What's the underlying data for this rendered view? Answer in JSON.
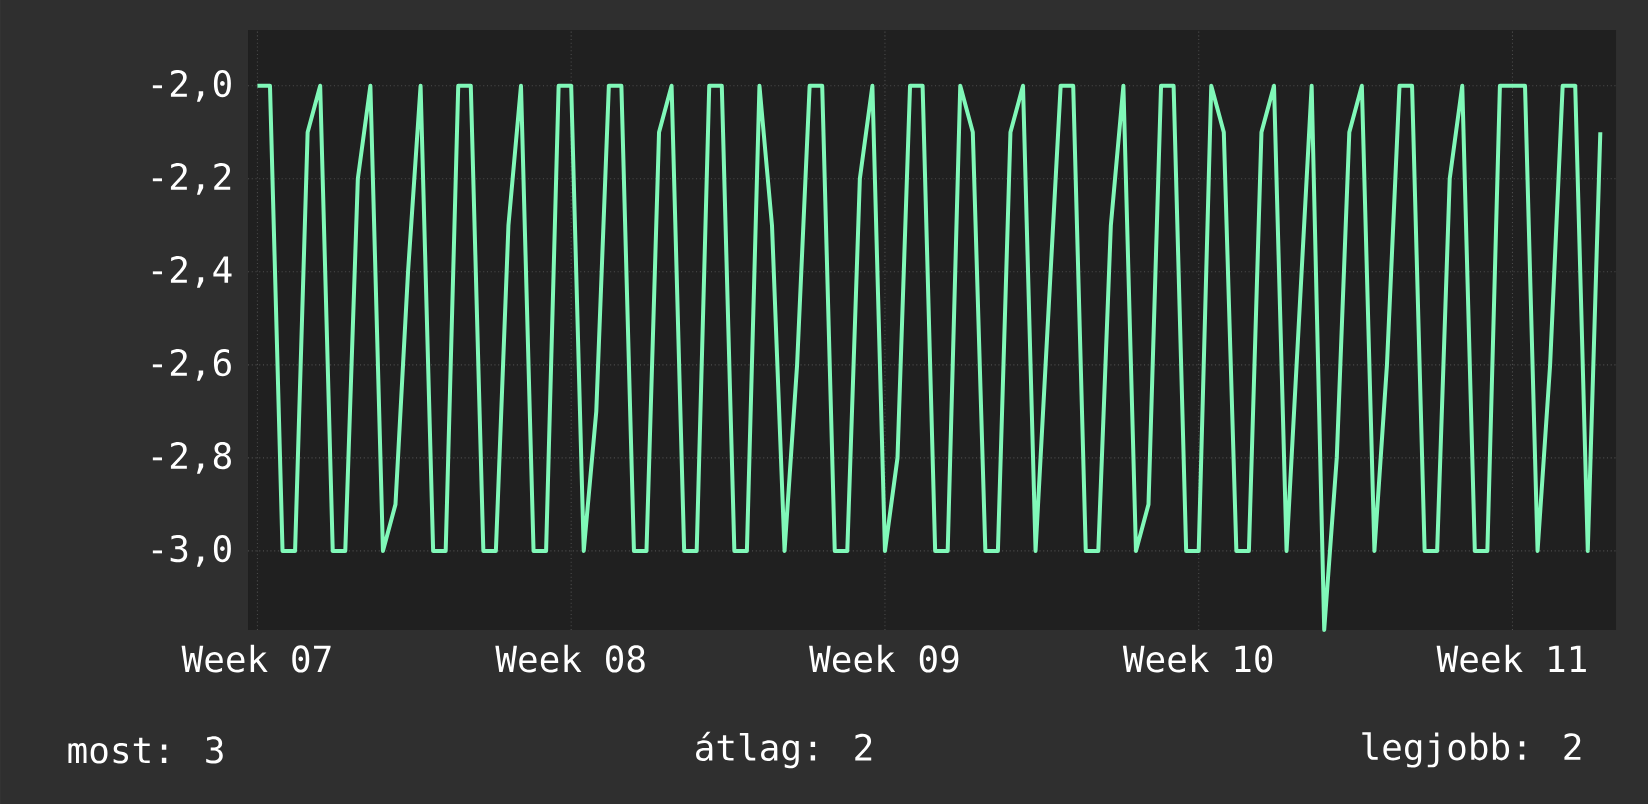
{
  "chart_data": {
    "type": "line",
    "ylim": [
      -3.17,
      -1.88
    ],
    "yticks": [
      {
        "value": -3.0,
        "label": "-3,0"
      },
      {
        "value": -2.8,
        "label": "-2,8"
      },
      {
        "value": -2.6,
        "label": "-2,6"
      },
      {
        "value": -2.4,
        "label": "-2,4"
      },
      {
        "value": -2.2,
        "label": "-2,2"
      },
      {
        "value": -2.0,
        "label": "-2,0"
      }
    ],
    "grid": true,
    "marker": "none",
    "line_style": "solid",
    "categories": [
      "Week 07",
      null,
      null,
      null,
      null,
      null,
      null,
      null,
      null,
      null,
      null,
      null,
      null,
      null,
      null,
      null,
      null,
      null,
      null,
      null,
      null,
      null,
      null,
      null,
      null,
      "Week 08",
      null,
      null,
      null,
      null,
      null,
      null,
      null,
      null,
      null,
      null,
      null,
      null,
      null,
      null,
      null,
      null,
      null,
      null,
      null,
      null,
      null,
      null,
      null,
      null,
      "Week 09",
      null,
      null,
      null,
      null,
      null,
      null,
      null,
      null,
      null,
      null,
      null,
      null,
      null,
      null,
      null,
      null,
      null,
      null,
      null,
      null,
      null,
      null,
      null,
      null,
      "Week 10",
      null,
      null,
      null,
      null,
      null,
      null,
      null,
      null,
      null,
      null,
      null,
      null,
      null,
      null,
      null,
      null,
      null,
      null,
      null,
      null,
      null,
      null,
      null,
      null,
      "Week 11",
      null,
      null,
      null,
      null,
      null,
      null,
      null
    ],
    "series": [
      {
        "color": "#80f8b8",
        "values": [
          -2.0,
          -2.0,
          -3.0,
          -3.0,
          -2.1,
          -2.0,
          -3.0,
          -3.0,
          -2.2,
          -2.0,
          -3.0,
          -2.9,
          -2.4,
          -2.0,
          -3.0,
          -3.0,
          -2.0,
          -2.0,
          -3.0,
          -3.0,
          -2.3,
          -2.0,
          -3.0,
          -3.0,
          -2.0,
          -2.0,
          -3.0,
          -2.7,
          -2.0,
          -2.0,
          -3.0,
          -3.0,
          -2.1,
          -2.0,
          -3.0,
          -3.0,
          -2.0,
          -2.0,
          -3.0,
          -3.0,
          -2.0,
          -2.3,
          -3.0,
          -2.6,
          -2.0,
          -2.0,
          -3.0,
          -3.0,
          -2.2,
          -2.0,
          -3.0,
          -2.8,
          -2.0,
          -2.0,
          -3.0,
          -3.0,
          -2.0,
          -2.1,
          -3.0,
          -3.0,
          -2.1,
          -2.0,
          -3.0,
          -2.5,
          -2.0,
          -2.0,
          -3.0,
          -3.0,
          -2.3,
          -2.0,
          -3.0,
          -2.9,
          -2.0,
          -2.0,
          -3.0,
          -3.0,
          -2.0,
          -2.1,
          -3.0,
          -3.0,
          -2.1,
          -2.0,
          -3.0,
          -2.5,
          -2.0,
          -3.17,
          -2.8,
          -2.1,
          -2.0,
          -3.0,
          -2.6,
          -2.0,
          -2.0,
          -3.0,
          -3.0,
          -2.2,
          -2.0,
          -3.0,
          -3.0,
          -2.0,
          -2.0,
          -2.0,
          -3.0,
          -2.6,
          -2.0,
          -2.0,
          -3.0,
          -2.1
        ]
      }
    ],
    "annotations": [
      "most: 3",
      "átlag: 2",
      "legjobb: 2"
    ]
  }
}
